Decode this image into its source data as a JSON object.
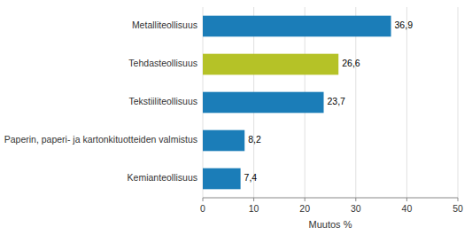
{
  "chart_data": {
    "type": "bar",
    "orientation": "horizontal",
    "categories": [
      "Kemianteollisuus",
      "Paperin, paperi- ja kartonkituotteiden valmistus",
      "Tekstiiliteollisuus",
      "Tehdasteollisuus",
      "Metalliteollisuus"
    ],
    "values": [
      7.4,
      8.2,
      23.7,
      26.6,
      36.9
    ],
    "value_labels": [
      "7,4",
      "8,2",
      "23,7",
      "26,6",
      "36,9"
    ],
    "data_labels": true,
    "colors": [
      "#1b7db8",
      "#1b7db8",
      "#1b7db8",
      "#b5c227",
      "#1b7db8"
    ],
    "xlabel": "Muutos %",
    "xlim": [
      0,
      50
    ],
    "xticks": [
      0,
      10,
      20,
      30,
      40,
      50
    ],
    "grid": true
  }
}
